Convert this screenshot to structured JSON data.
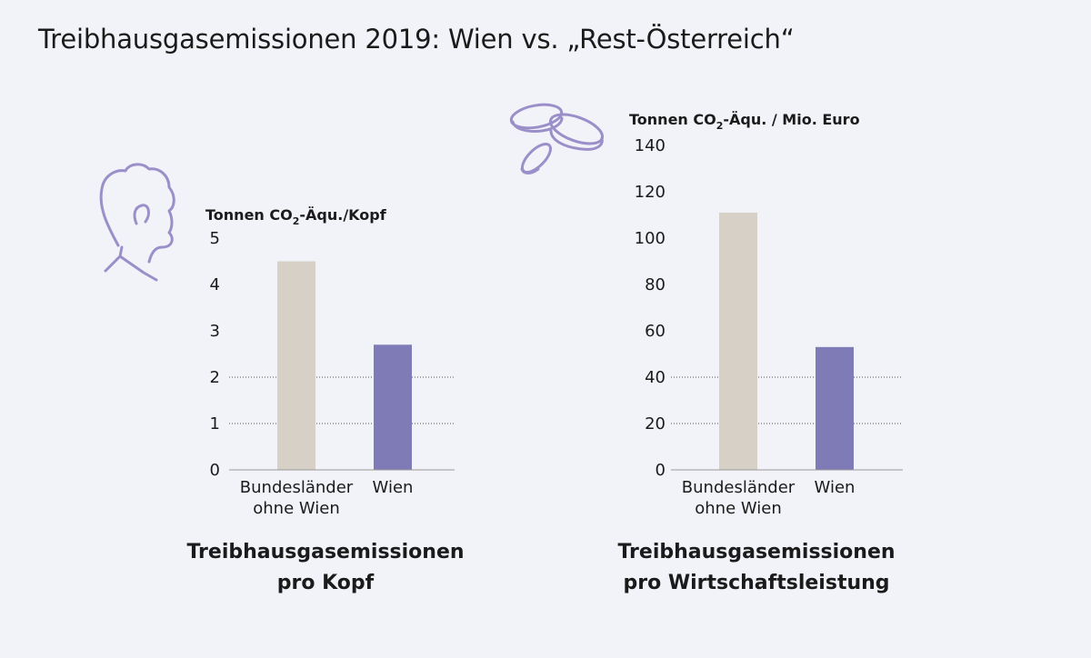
{
  "title": "Treibhausgasemissionen 2019: Wien vs. „Rest-Österreich“",
  "colors": {
    "bundeslaender": "#d7d0c6",
    "wien": "#7e7bb6",
    "icon": "#9b8fca"
  },
  "chart_data": [
    {
      "type": "bar",
      "ylabel_prefix": "Tonnen CO",
      "ylabel_sub": "2",
      "ylabel_suffix": "-Äqu./Kopf",
      "categories": [
        [
          "Bundesländer",
          "ohne Wien"
        ],
        [
          "Wien"
        ]
      ],
      "values": [
        4.5,
        2.7
      ],
      "ylim": [
        0,
        5
      ],
      "yticks": [
        0,
        1,
        2,
        3,
        4,
        5
      ],
      "gridlines": [
        1,
        2
      ],
      "subtitle": [
        "Treibhausgasemissionen",
        "pro Kopf"
      ],
      "icon": "person-head-icon"
    },
    {
      "type": "bar",
      "ylabel_prefix": "Tonnen CO",
      "ylabel_sub": "2",
      "ylabel_suffix": "-Äqu. / Mio. Euro",
      "categories": [
        [
          "Bundesländer",
          "ohne Wien"
        ],
        [
          "Wien"
        ]
      ],
      "values": [
        111,
        53
      ],
      "ylim": [
        0,
        140
      ],
      "yticks": [
        0,
        20,
        40,
        60,
        80,
        100,
        120,
        140
      ],
      "gridlines": [
        20,
        40
      ],
      "subtitle": [
        "Treibhausgasemissionen",
        "pro Wirtschaftsleistung"
      ],
      "icon": "coins-icon"
    }
  ]
}
